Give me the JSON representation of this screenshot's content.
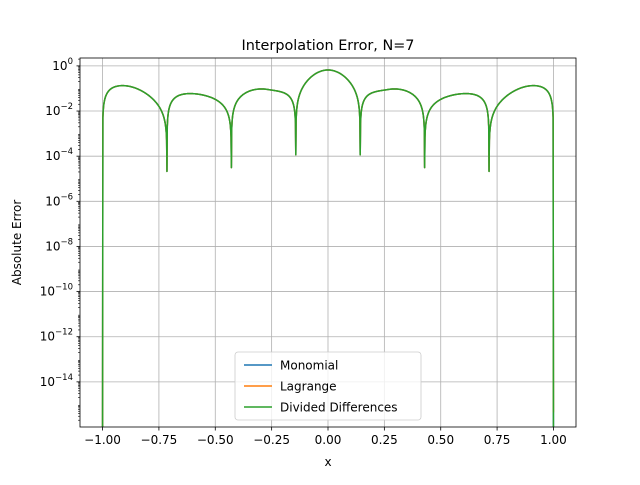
{
  "chart_data": {
    "type": "line",
    "title": "Interpolation Error, N=7",
    "xlabel": "x",
    "ylabel": "Absolute Error",
    "xlim": [
      -1.1,
      1.1
    ],
    "ylim_log10": [
      -16,
      0.35
    ],
    "yscale": "log",
    "grid": true,
    "legend_position": "lower center",
    "x_ticks": [
      {
        "value": -1.0,
        "label": "−1.00"
      },
      {
        "value": -0.75,
        "label": "−0.75"
      },
      {
        "value": -0.5,
        "label": "−0.50"
      },
      {
        "value": -0.25,
        "label": "−0.25"
      },
      {
        "value": 0.0,
        "label": "0.00"
      },
      {
        "value": 0.25,
        "label": "0.25"
      },
      {
        "value": 0.5,
        "label": "0.50"
      },
      {
        "value": 0.75,
        "label": "0.75"
      },
      {
        "value": 1.0,
        "label": "1.00"
      }
    ],
    "y_ticks": [
      {
        "exp": 0,
        "base": "10",
        "sup": "0"
      },
      {
        "exp": -2,
        "base": "10",
        "sup": "−2"
      },
      {
        "exp": -4,
        "base": "10",
        "sup": "−4"
      },
      {
        "exp": -6,
        "base": "10",
        "sup": "−6"
      },
      {
        "exp": -8,
        "base": "10",
        "sup": "−8"
      },
      {
        "exp": -10,
        "base": "10",
        "sup": "−10"
      },
      {
        "exp": -12,
        "base": "10",
        "sup": "−12"
      },
      {
        "exp": -14,
        "base": "10",
        "sup": "−14"
      }
    ],
    "nodes": [
      -1.0,
      -0.7143,
      -0.4286,
      -0.1429,
      0.1429,
      0.4286,
      0.7143,
      1.0
    ],
    "series": [
      {
        "name": "Monomial",
        "color": "#1f77b4"
      },
      {
        "name": "Lagrange",
        "color": "#ff7f0e"
      },
      {
        "name": "Divided Differences",
        "color": "#2ca02c"
      }
    ],
    "envelope_peaks": [
      {
        "x": -0.9,
        "y": 0.11
      },
      {
        "x": -0.58,
        "y": 0.055
      },
      {
        "x": -0.27,
        "y": 0.095
      },
      {
        "x": 0.0,
        "y": 0.66
      },
      {
        "x": 0.27,
        "y": 0.095
      },
      {
        "x": 0.58,
        "y": 0.055
      },
      {
        "x": 0.9,
        "y": 0.11
      }
    ]
  }
}
